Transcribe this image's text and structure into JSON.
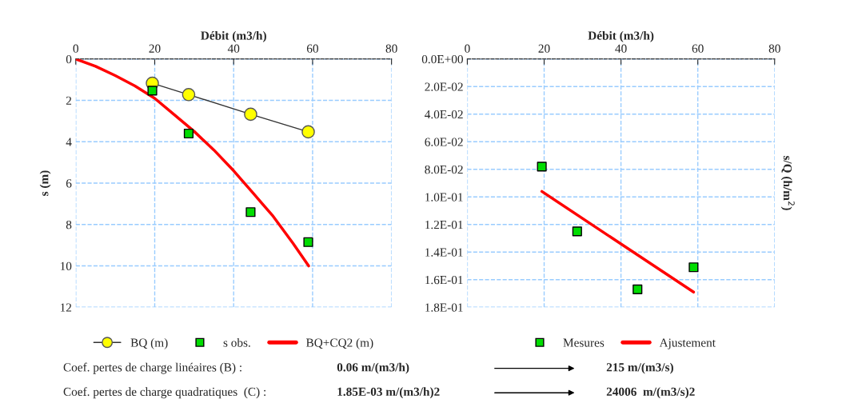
{
  "chart_data": [
    {
      "type": "line",
      "xlabel": "Débit (m3/h)",
      "ylabel": "s (m)",
      "xlim": [
        0,
        80
      ],
      "xticks": [
        0,
        20,
        40,
        60,
        80
      ],
      "ylim": [
        12,
        0
      ],
      "yticks": [
        0,
        2,
        4,
        6,
        8,
        10,
        12
      ],
      "grid": true,
      "legend": "bottom",
      "series": [
        {
          "name": "BQ (m)",
          "color": "#ffff00",
          "marker": "circle",
          "line_style": "solid",
          "x": [
            19.4,
            28.6,
            44.3,
            58.9
          ],
          "values": [
            1.17,
            1.72,
            2.67,
            3.52
          ]
        },
        {
          "name": "s obs.",
          "type": "scatter",
          "color": "#00dd00",
          "marker": "square",
          "x": [
            19.4,
            28.6,
            44.3,
            58.9
          ],
          "values": [
            1.53,
            3.6,
            7.4,
            8.85
          ]
        },
        {
          "name": "BQ+CQ2 (m)",
          "color": "#ff0000",
          "marker": "none",
          "line_style": "solid",
          "x": [
            0,
            5,
            10,
            15,
            20,
            25,
            30,
            35,
            40,
            45,
            50,
            55,
            59
          ],
          "values": [
            0,
            0.35,
            0.8,
            1.3,
            1.9,
            2.7,
            3.5,
            4.4,
            5.4,
            6.5,
            7.6,
            8.9,
            10
          ]
        }
      ]
    },
    {
      "type": "line",
      "xlabel": "Débit (m3/h)",
      "ylabel": "s/Q (h/m$^{2}$)",
      "xlim": [
        0,
        80
      ],
      "xticks": [
        0,
        20,
        40,
        60,
        80
      ],
      "ylim": [
        0.18,
        0
      ],
      "yticks": [
        {
          "value": 0,
          "label": "0.0E+00"
        },
        {
          "value": 0.02,
          "label": "2.0E-02"
        },
        {
          "value": 0.04,
          "label": "4.0E-02"
        },
        {
          "value": 0.06,
          "label": "6.0E-02"
        },
        {
          "value": 0.08,
          "label": "8.0E-02"
        },
        {
          "value": 0.1,
          "label": "1.0E-01"
        },
        {
          "value": 0.12,
          "label": "1.2E-01"
        },
        {
          "value": 0.14,
          "label": "1.4E-01"
        },
        {
          "value": 0.16,
          "label": "1.6E-01"
        },
        {
          "value": 0.18,
          "label": "1.8E-01"
        }
      ],
      "grid": true,
      "legend": "bottom",
      "series": [
        {
          "name": "Mesures",
          "type": "scatter",
          "color": "#00dd00",
          "marker": "square",
          "x": [
            19.4,
            28.6,
            44.3,
            58.9
          ],
          "values": [
            0.078,
            0.125,
            0.167,
            0.151
          ]
        },
        {
          "name": "Ajustement",
          "color": "#ff0000",
          "marker": "none",
          "line_style": "solid",
          "x": [
            19.4,
            58.9
          ],
          "values": [
            0.096,
            0.169
          ]
        }
      ],
      "annotations": [
        "Coef. pertes de charge linéaires (B) :",
        "0.06 m/(m3/h)",
        "215 m/(m3/s)",
        "Coef. pertes de charge quadratiques  (C) :",
        "1.85E-03 m/(m3/h)2",
        "24006  m/(m3/s)2"
      ]
    }
  ]
}
